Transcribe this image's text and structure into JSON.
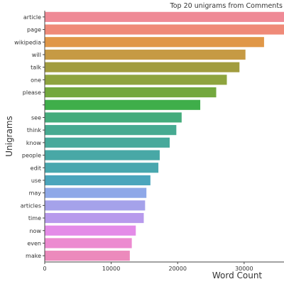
{
  "chart_data": {
    "type": "bar",
    "orientation": "horizontal",
    "title": "Top 20 unigrams from Comments",
    "xlabel": "Word Count",
    "ylabel": "Unigrams",
    "xlim": [
      0,
      36000
    ],
    "xticks": [
      0,
      10000,
      20000,
      30000
    ],
    "grid": false,
    "categories": [
      "article",
      "page",
      "wikipedia",
      "will",
      "talk",
      "one",
      "please",
      "",
      "see",
      "think",
      "know",
      "people",
      "edit",
      "use",
      "may",
      "articles",
      "time",
      "now",
      "even",
      "make"
    ],
    "values": [
      36000,
      36000,
      33000,
      30200,
      29300,
      27400,
      25800,
      23400,
      20600,
      19800,
      18800,
      17300,
      17100,
      15900,
      15300,
      15100,
      14900,
      13700,
      13100,
      12800
    ],
    "colors": [
      "#ef8a96",
      "#ef8a78",
      "#e09748",
      "#c69a44",
      "#a19c3e",
      "#8ea43e",
      "#73a83e",
      "#3fae4a",
      "#44ac7c",
      "#46aa91",
      "#47a99b",
      "#48a8a6",
      "#48a7ae",
      "#4aa5bc",
      "#8ea8e8",
      "#a5a2ea",
      "#b79aec",
      "#e48be8",
      "#ec8ad0",
      "#ec8abc"
    ]
  }
}
